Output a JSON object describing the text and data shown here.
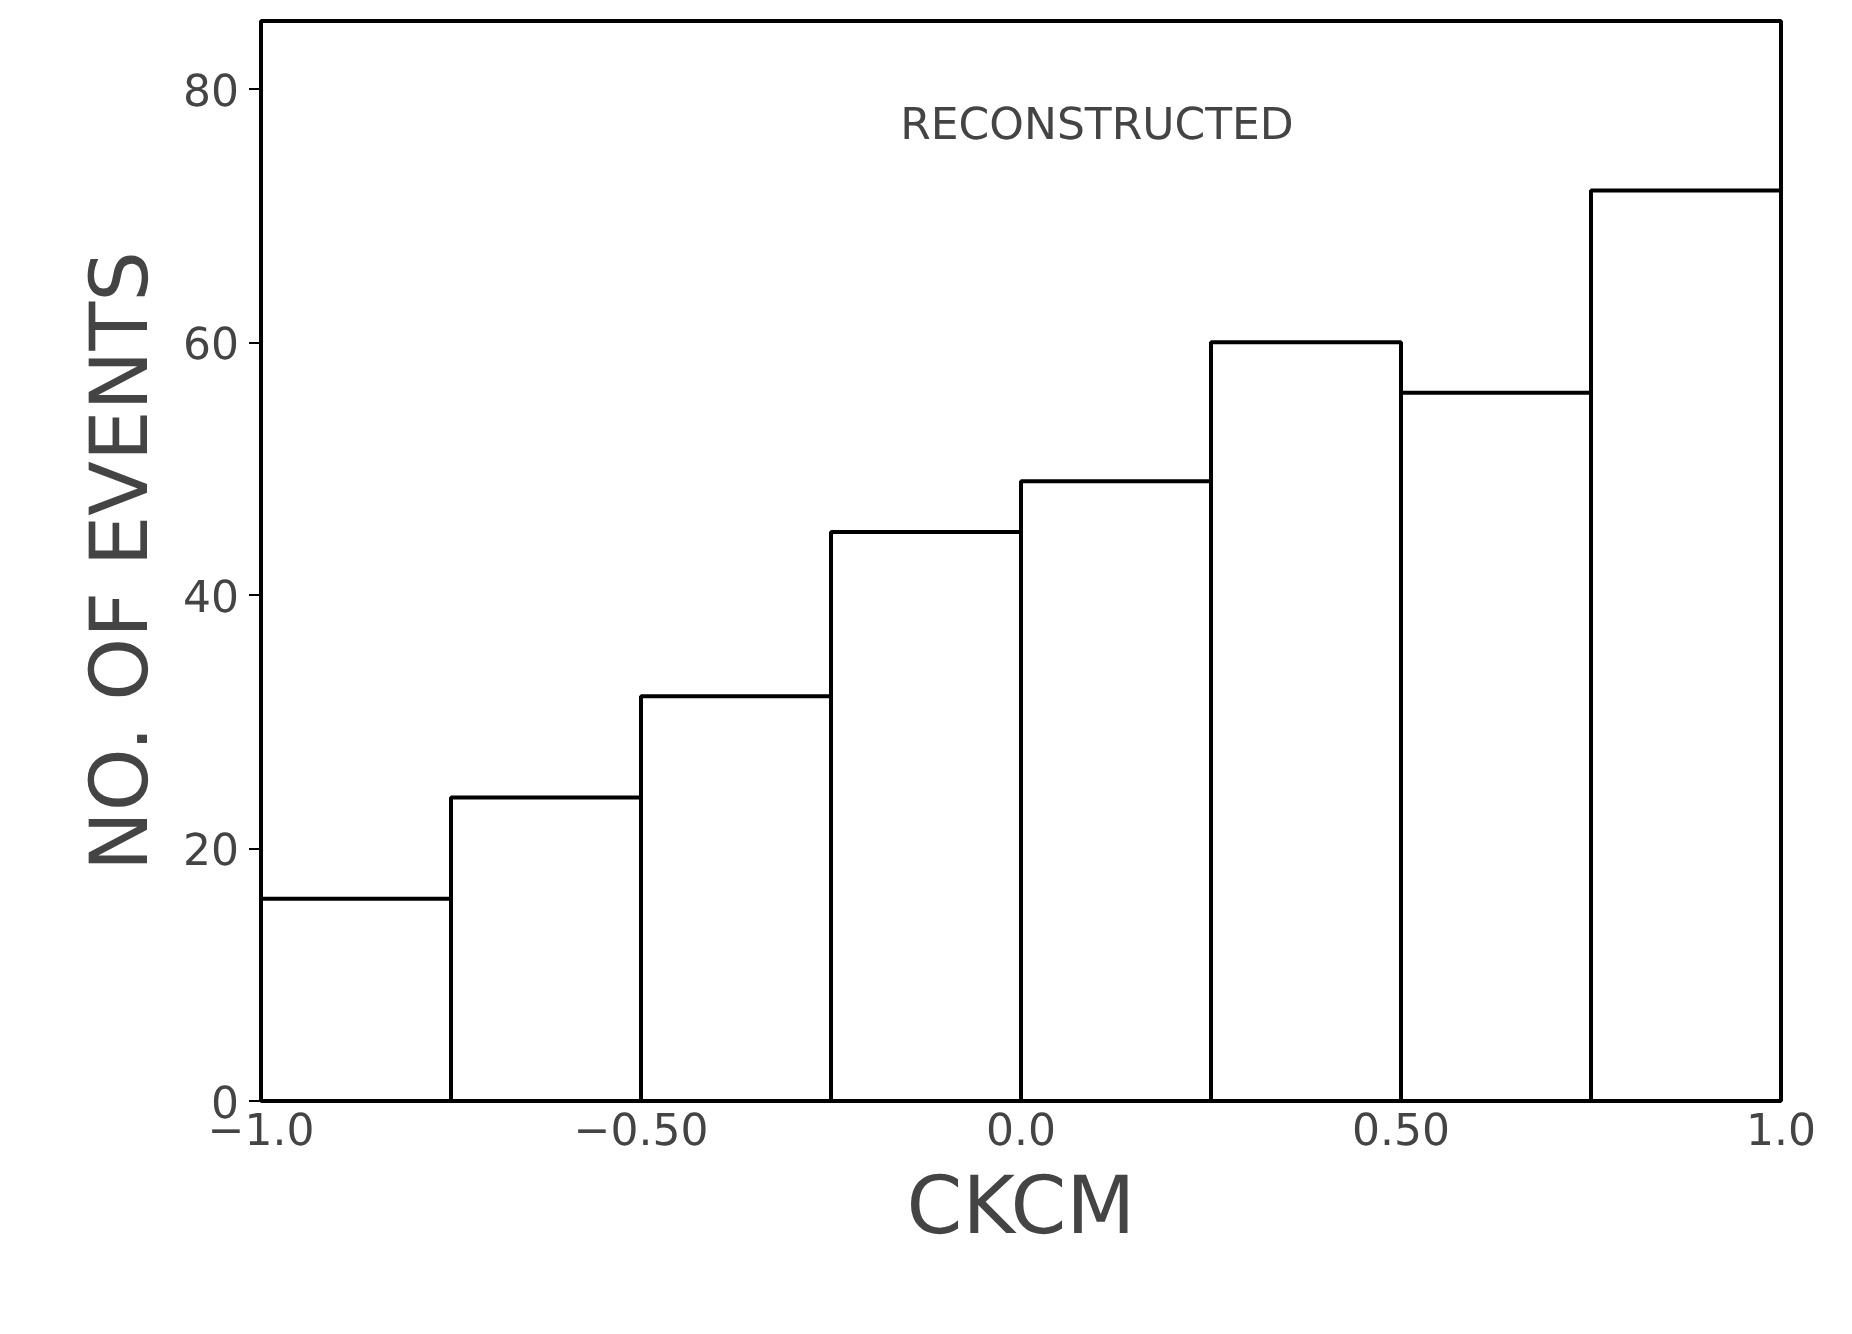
{
  "chart_data": {
    "type": "histogram",
    "xlabel": "CKCM",
    "ylabel": "NO. OF EVENTS",
    "bins": [
      -1.0,
      -0.75,
      -0.5,
      -0.25,
      0.0,
      0.25,
      0.5,
      0.75,
      1.0
    ],
    "values": [
      16,
      24,
      32,
      45,
      49,
      60,
      56,
      72
    ],
    "color": "#000000",
    "xlim": [
      -1.0,
      1.0
    ],
    "ylim": [
      0,
      85.4
    ],
    "xticks": [
      {
        "value": -1.0,
        "label": "−1.0"
      },
      {
        "value": -0.75,
        "label": null
      },
      {
        "value": -0.5,
        "label": "−0.50"
      },
      {
        "value": -0.25,
        "label": null
      },
      {
        "value": 0.0,
        "label": "0.0"
      },
      {
        "value": 0.25,
        "label": null
      },
      {
        "value": 0.5,
        "label": "0.50"
      },
      {
        "value": 0.75,
        "label": null
      },
      {
        "value": 1.0,
        "label": "1.0"
      }
    ],
    "yticks": [
      0,
      20,
      40,
      60,
      80
    ],
    "annotations": [
      "RECONSTRUCTED"
    ],
    "grid": false
  }
}
